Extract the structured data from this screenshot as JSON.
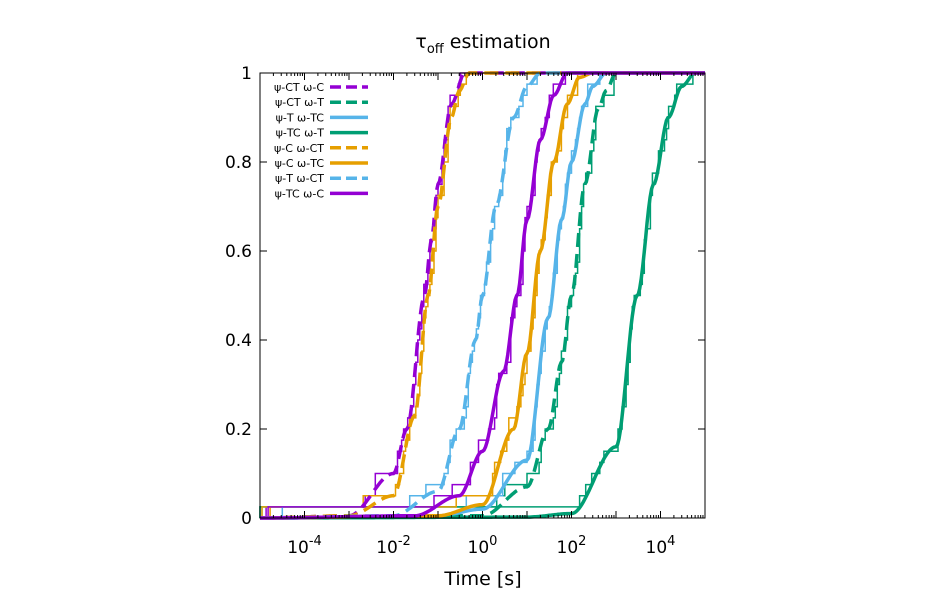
{
  "chart_data": {
    "type": "line",
    "title_main": "τ",
    "title_sub": "off",
    "title_rest": " estimation",
    "xlabel": "Time [s]",
    "ylabel": "",
    "xscale": "log",
    "xlim": [
      1e-05,
      100000.0
    ],
    "ylim": [
      0,
      1
    ],
    "xticks": [
      {
        "value": 0.0001,
        "base": "10",
        "exp": "-4"
      },
      {
        "value": 0.01,
        "base": "10",
        "exp": "-2"
      },
      {
        "value": 1,
        "base": "10",
        "exp": "0"
      },
      {
        "value": 100,
        "base": "10",
        "exp": "2"
      },
      {
        "value": 10000,
        "base": "10",
        "exp": "4"
      }
    ],
    "yticks": [
      "0",
      "0.2",
      "0.4",
      "0.6",
      "0.8",
      "1"
    ],
    "grid": false,
    "legend_position": "top-left",
    "series": [
      {
        "name": "ψ-CT ω-C",
        "color": "#9400d3",
        "dash": true,
        "fit_x": [
          1e-05,
          0.001,
          0.01,
          0.02,
          0.05,
          0.07,
          0.1,
          0.2,
          0.4,
          1,
          100000.0
        ],
        "fit_y": [
          0,
          0.005,
          0.1,
          0.2,
          0.5,
          0.62,
          0.75,
          0.93,
          1,
          1,
          1
        ]
      },
      {
        "name": "ψ-CT ω-T",
        "color": "#009e73",
        "dash": true,
        "fit_x": [
          1e-05,
          1,
          10,
          30,
          60,
          100,
          200,
          400,
          600,
          1000,
          100000.0
        ],
        "fit_y": [
          0,
          0.005,
          0.07,
          0.2,
          0.35,
          0.5,
          0.75,
          0.92,
          0.96,
          1,
          1
        ]
      },
      {
        "name": "ψ-T ω-TC",
        "color": "#56b4e9",
        "dash": false,
        "fit_x": [
          1e-05,
          0.1,
          1,
          10,
          30,
          60,
          100,
          200,
          300,
          600,
          100000.0
        ],
        "fit_y": [
          0,
          0.005,
          0.02,
          0.13,
          0.45,
          0.67,
          0.8,
          0.93,
          0.97,
          1,
          1
        ]
      },
      {
        "name": "ψ-TC ω-T",
        "color": "#009e73",
        "dash": false,
        "fit_x": [
          1e-05,
          10,
          100,
          1000,
          3000,
          7000,
          15000,
          30000,
          60000,
          100000.0
        ],
        "fit_y": [
          0,
          0.002,
          0.01,
          0.16,
          0.5,
          0.75,
          0.9,
          0.97,
          1,
          1
        ]
      },
      {
        "name": "ψ-C ω-CT",
        "color": "#e69f00",
        "dash": true,
        "fit_x": [
          1e-05,
          0.001,
          0.01,
          0.03,
          0.06,
          0.1,
          0.2,
          0.3,
          0.5,
          1,
          100000.0
        ],
        "fit_y": [
          0,
          0.005,
          0.05,
          0.23,
          0.5,
          0.7,
          0.9,
          0.96,
          1,
          1,
          1
        ]
      },
      {
        "name": "ψ-C ω-TC",
        "color": "#e69f00",
        "dash": false,
        "fit_x": [
          1e-05,
          0.1,
          1,
          5,
          10,
          20,
          40,
          80,
          150,
          300,
          100000.0
        ],
        "fit_y": [
          0,
          0.005,
          0.03,
          0.2,
          0.37,
          0.6,
          0.8,
          0.93,
          0.99,
          1,
          1
        ]
      },
      {
        "name": "ψ-T ω-CT",
        "color": "#56b4e9",
        "dash": true,
        "fit_x": [
          1e-05,
          0.01,
          0.1,
          0.3,
          0.7,
          1,
          2,
          5,
          10,
          20,
          100000.0
        ],
        "fit_y": [
          0,
          0.005,
          0.06,
          0.2,
          0.4,
          0.5,
          0.7,
          0.9,
          0.97,
          1,
          1
        ]
      },
      {
        "name": "ψ-TC ω-C",
        "color": "#9400d3",
        "dash": false,
        "fit_x": [
          1e-05,
          0.03,
          0.3,
          1,
          3,
          6,
          10,
          20,
          40,
          80,
          100000.0
        ],
        "fit_y": [
          0,
          0.005,
          0.05,
          0.15,
          0.33,
          0.5,
          0.67,
          0.85,
          0.95,
          1,
          1
        ]
      }
    ]
  }
}
